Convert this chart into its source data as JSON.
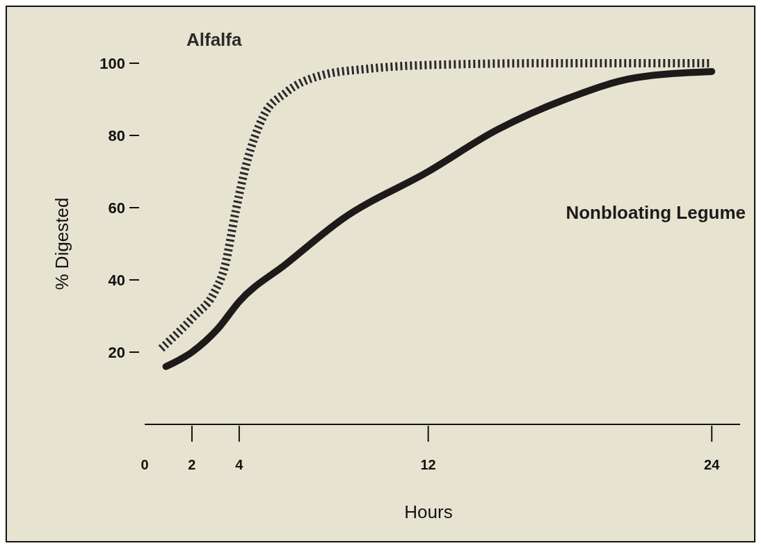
{
  "chart_data": {
    "type": "line",
    "xlabel": "Hours",
    "ylabel": "% Digested",
    "xlim": [
      0,
      25.2
    ],
    "xticks": [
      0,
      2,
      4,
      12,
      24
    ],
    "ylim": [
      0,
      100
    ],
    "yticks": [
      20,
      40,
      60,
      80,
      100
    ],
    "grid": false,
    "series": [
      {
        "name": "Alfalfa",
        "color": "#2a2a2a",
        "line_style": "dotted",
        "x": [
          0.7,
          2.1,
          2.9,
          3.4,
          3.85,
          4.3,
          5,
          6,
          7.4,
          9.5,
          12,
          17.2,
          24
        ],
        "values": [
          21,
          30,
          36,
          44,
          59,
          72,
          85,
          92,
          96.5,
          98.5,
          99.5,
          100,
          100
        ]
      },
      {
        "name": "Nonbloating Legume",
        "color": "#1e1a1a",
        "line_style": "solid",
        "x": [
          0.9,
          2,
          3.1,
          4,
          6,
          8.4,
          12,
          14.9,
          17.8,
          20.8,
          24
        ],
        "values": [
          16,
          20,
          26.5,
          34,
          44.5,
          57,
          70,
          81.5,
          90,
          96,
          97.7
        ]
      }
    ]
  }
}
